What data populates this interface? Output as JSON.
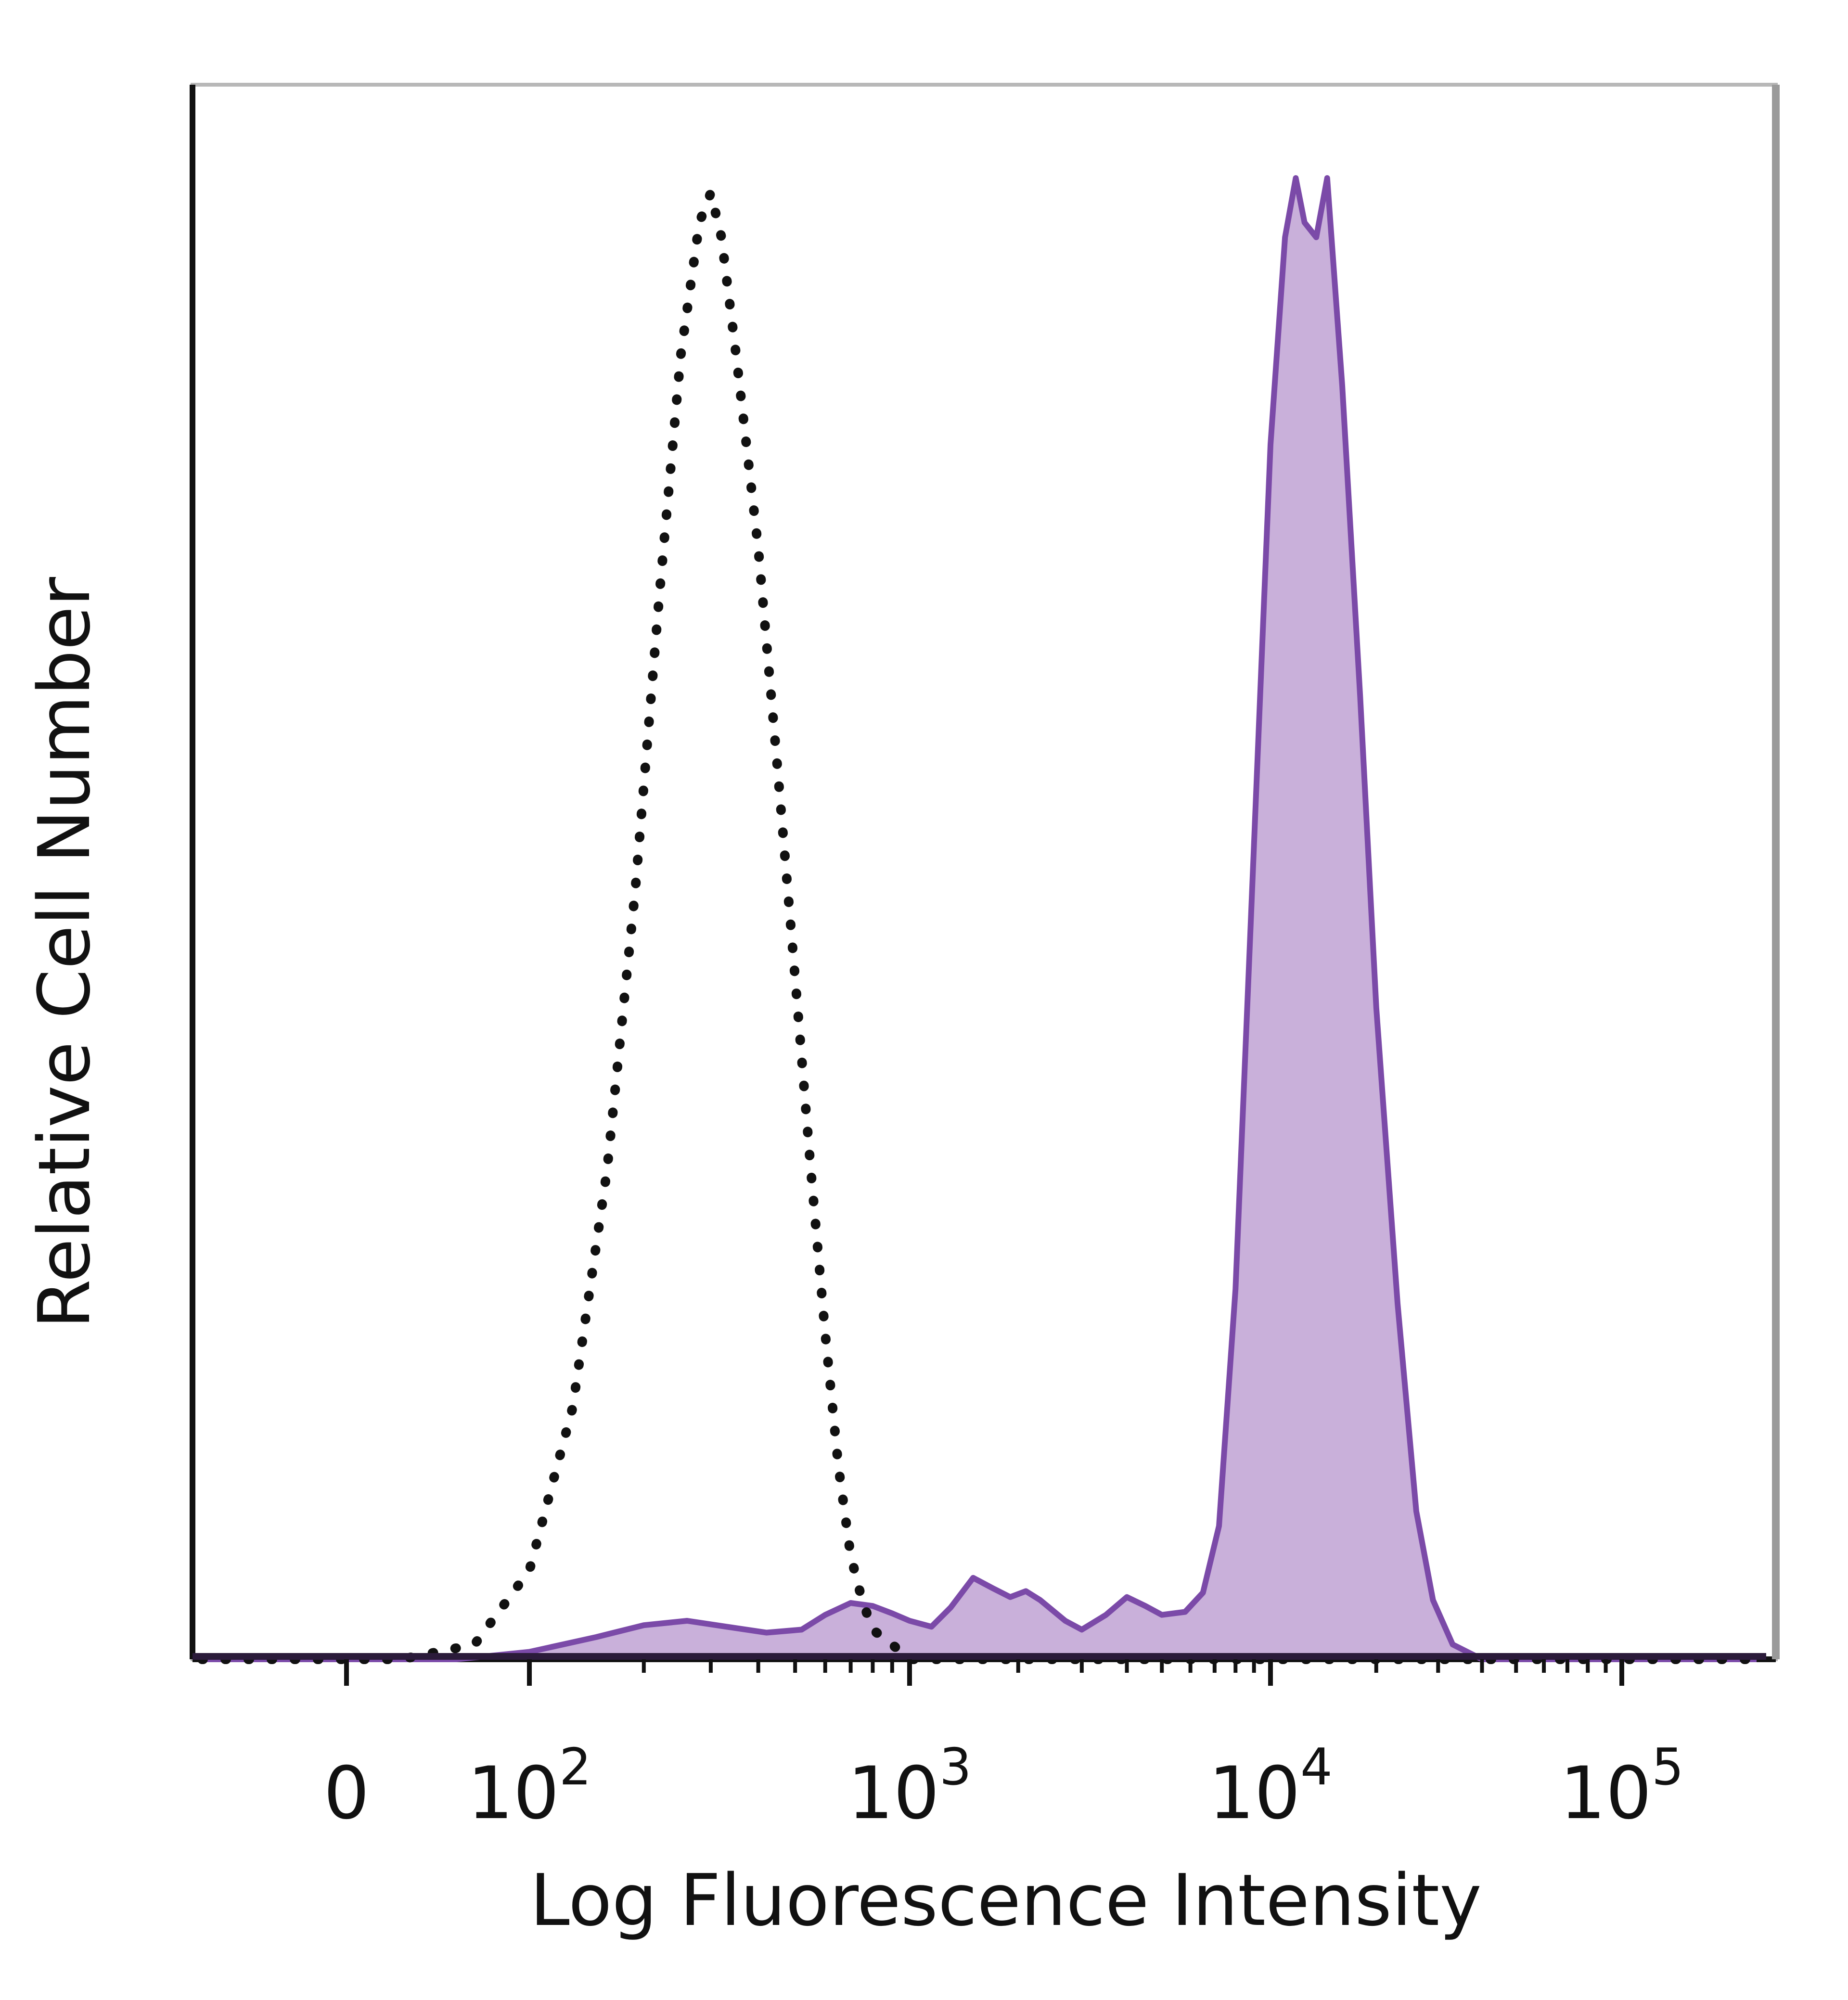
{
  "chart_data": {
    "type": "area",
    "xlabel": "Log Fluorescence Intensity",
    "ylabel": "Relative Cell Number",
    "x_scale": "biexponential (log with linear region near 0)",
    "x_ticks": [
      {
        "value": 0,
        "label": "0",
        "base": "0",
        "exp": ""
      },
      {
        "value": 100,
        "label": "10^2",
        "base": "10",
        "exp": "2"
      },
      {
        "value": 1000,
        "label": "10^3",
        "base": "10",
        "exp": "3"
      },
      {
        "value": 10000,
        "label": "10^4",
        "base": "10",
        "exp": "4"
      },
      {
        "value": 100000,
        "label": "10^5",
        "base": "10",
        "exp": "5"
      }
    ],
    "ylim": [
      0,
      100
    ],
    "grid": false,
    "series": [
      {
        "style": "dotted-black-line",
        "color": "#111111",
        "points": [
          [
            -150,
            0
          ],
          [
            30,
            0
          ],
          [
            70,
            1
          ],
          [
            100,
            6
          ],
          [
            130,
            17
          ],
          [
            160,
            33
          ],
          [
            190,
            52
          ],
          [
            220,
            72
          ],
          [
            250,
            88
          ],
          [
            280,
            97
          ],
          [
            300,
            99
          ],
          [
            320,
            96
          ],
          [
            350,
            88
          ],
          [
            400,
            75
          ],
          [
            450,
            60
          ],
          [
            500,
            46
          ],
          [
            550,
            33
          ],
          [
            600,
            22
          ],
          [
            650,
            13
          ],
          [
            700,
            7
          ],
          [
            750,
            4
          ],
          [
            800,
            2
          ],
          [
            900,
            1
          ],
          [
            1000,
            0
          ],
          [
            200000,
            0
          ]
        ]
      },
      {
        "style": "filled-purple-area",
        "color": "#7b4aa8",
        "fill": "#c9b0da",
        "points": [
          [
            -150,
            0
          ],
          [
            60,
            0
          ],
          [
            100,
            0.5
          ],
          [
            150,
            1.5
          ],
          [
            200,
            2.3
          ],
          [
            260,
            2.6
          ],
          [
            330,
            2.2
          ],
          [
            420,
            1.8
          ],
          [
            520,
            2.0
          ],
          [
            600,
            3
          ],
          [
            700,
            3.8
          ],
          [
            800,
            3.6
          ],
          [
            900,
            3.1
          ],
          [
            1000,
            2.6
          ],
          [
            1150,
            2.2
          ],
          [
            1300,
            3.5
          ],
          [
            1500,
            5.5
          ],
          [
            1700,
            4.8
          ],
          [
            1900,
            4.2
          ],
          [
            2100,
            4.6
          ],
          [
            2300,
            4.0
          ],
          [
            2700,
            2.6
          ],
          [
            3000,
            2.0
          ],
          [
            3500,
            3.0
          ],
          [
            4000,
            4.2
          ],
          [
            4500,
            3.6
          ],
          [
            5000,
            3.0
          ],
          [
            5800,
            3.2
          ],
          [
            6500,
            4.5
          ],
          [
            7200,
            9
          ],
          [
            8000,
            25
          ],
          [
            9000,
            55
          ],
          [
            10000,
            82
          ],
          [
            11000,
            96
          ],
          [
            11800,
            100
          ],
          [
            12500,
            97
          ],
          [
            13500,
            96
          ],
          [
            14500,
            100
          ],
          [
            16000,
            86
          ],
          [
            18000,
            65
          ],
          [
            20000,
            44
          ],
          [
            23000,
            24
          ],
          [
            26000,
            10
          ],
          [
            29000,
            4
          ],
          [
            33000,
            1
          ],
          [
            40000,
            0
          ],
          [
            200000,
            0
          ]
        ]
      }
    ]
  }
}
